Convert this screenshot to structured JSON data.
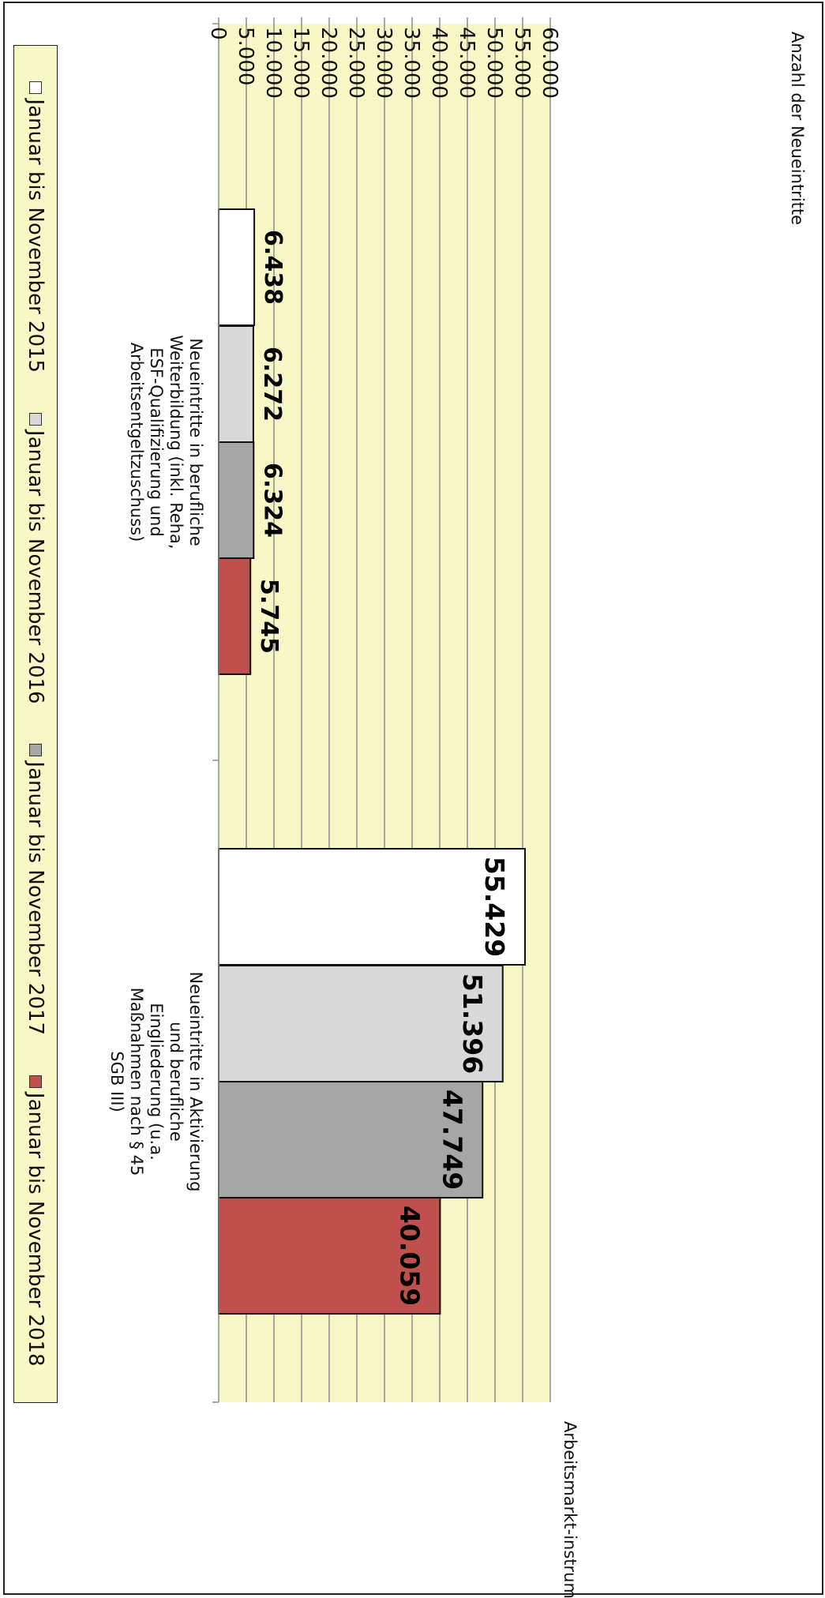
{
  "chart_data": {
    "type": "bar",
    "orientation": "vertical",
    "y_title": "Anzahl der Neueintritte",
    "x_title": "Arbeitsmarkt-instrumente",
    "ylim": [
      0,
      60000
    ],
    "y_ticks": [
      {
        "value": 0,
        "label": "0"
      },
      {
        "value": 5000,
        "label": "5.000"
      },
      {
        "value": 10000,
        "label": "10.000"
      },
      {
        "value": 15000,
        "label": "15.000"
      },
      {
        "value": 20000,
        "label": "20.000"
      },
      {
        "value": 25000,
        "label": "25.000"
      },
      {
        "value": 30000,
        "label": "30.000"
      },
      {
        "value": 35000,
        "label": "35.000"
      },
      {
        "value": 40000,
        "label": "40.000"
      },
      {
        "value": 45000,
        "label": "45.000"
      },
      {
        "value": 50000,
        "label": "50.000"
      },
      {
        "value": 55000,
        "label": "55.000"
      },
      {
        "value": 60000,
        "label": "60.000"
      }
    ],
    "categories": [
      [
        "Neueintritte in berufliche",
        "Weiterbildung (inkl. Reha,",
        "ESF-Qualifizierung und",
        "Arbeitsentgeltzuschuss)"
      ],
      [
        "Neueintritte in Aktivierung",
        "und berufliche",
        "Eingliederung (u.a.",
        "Maßnahmen nach § 45",
        "SGB III)"
      ]
    ],
    "series": [
      {
        "name": "Januar bis November 2015",
        "color": "#ffffff",
        "values": [
          6438,
          55429
        ],
        "labels": [
          "6.438",
          "55.429"
        ]
      },
      {
        "name": "Januar bis November 2016",
        "color": "#d9d9d9",
        "values": [
          6272,
          51396
        ],
        "labels": [
          "6.272",
          "51.396"
        ]
      },
      {
        "name": "Januar bis November 2017",
        "color": "#a6a6a6",
        "values": [
          6324,
          47749
        ],
        "labels": [
          "6.324",
          "47.749"
        ]
      },
      {
        "name": "Januar bis November 2018",
        "color": "#c0504d",
        "values": [
          5745,
          40059
        ],
        "labels": [
          "5.745",
          "40.059"
        ]
      }
    ],
    "plot_background": "#f8f8c6",
    "grid": true,
    "legend_position": "bottom"
  }
}
